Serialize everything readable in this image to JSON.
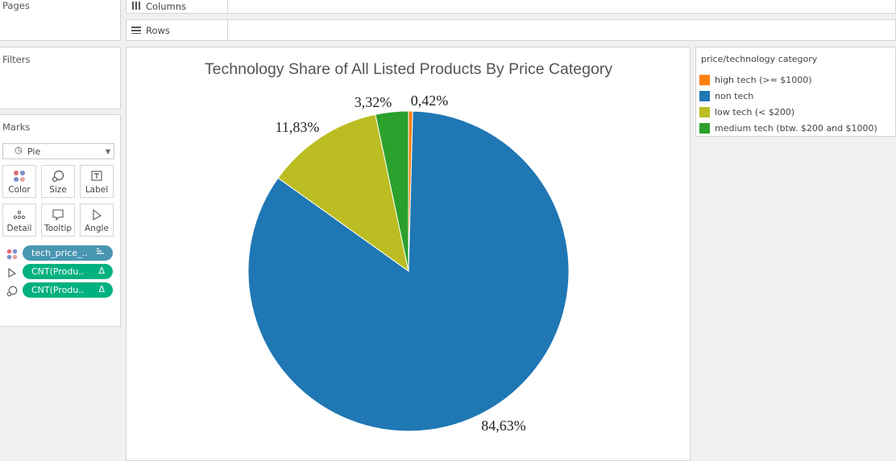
{
  "shelves": {
    "pages_label": "Pages",
    "columns_label": "Columns",
    "rows_label": "Rows",
    "filters_label": "Filters"
  },
  "marks": {
    "title": "Marks",
    "mark_type": "Pie",
    "buttons": [
      {
        "label": "Color",
        "icon": "color-dots-icon"
      },
      {
        "label": "Size",
        "icon": "size-icon"
      },
      {
        "label": "Label",
        "icon": "label-icon"
      },
      {
        "label": "Detail",
        "icon": "detail-dots-icon"
      },
      {
        "label": "Tooltip",
        "icon": "tooltip-icon"
      },
      {
        "label": "Angle",
        "icon": "angle-icon"
      }
    ],
    "pills": [
      {
        "text": "tech_price_..",
        "color": "#4996b2",
        "type_icon": "color-dots-icon",
        "end_icon": "sort-icon"
      },
      {
        "text": "CNT(Produ..",
        "color": "#00b180",
        "type_icon": "angle-icon",
        "end_icon": "delta-icon"
      },
      {
        "text": "CNT(Produ..",
        "color": "#00b180",
        "type_icon": "size-icon",
        "end_icon": "delta-icon"
      }
    ]
  },
  "legend": {
    "title": "price/technology category",
    "items": [
      {
        "label": "high tech (>= $1000)",
        "color": "#ff7f0e"
      },
      {
        "label": "non tech",
        "color": "#1f77b4"
      },
      {
        "label": "low tech (< $200)",
        "color": "#bcbd22"
      },
      {
        "label": "medium tech (btw. $200 and $1000)",
        "color": "#2ca02c"
      }
    ]
  },
  "chart_data": {
    "type": "pie",
    "title": "Technology Share of All Listed Products By Price Category",
    "slices": [
      {
        "category": "high tech (>= $1000)",
        "value": 0.42,
        "label": "0,42%",
        "color": "#ff7f0e"
      },
      {
        "category": "non tech",
        "value": 84.63,
        "label": "84,63%",
        "color": "#1f77b4"
      },
      {
        "category": "low tech (< $200)",
        "value": 11.83,
        "label": "11,83%",
        "color": "#bcbd22"
      },
      {
        "category": "medium tech (btw. $200 and $1000)",
        "value": 3.32,
        "label": "3,32%",
        "color": "#2ca02c"
      }
    ]
  }
}
